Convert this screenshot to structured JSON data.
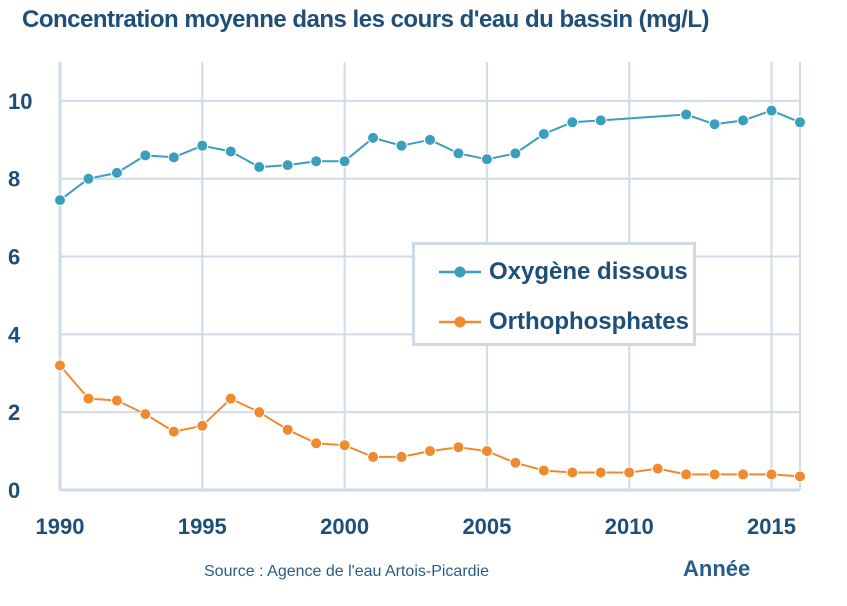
{
  "chart_data": {
    "type": "line",
    "title": "Concentration moyenne dans les cours d'eau du bassin (mg/L)",
    "xlabel": "Année",
    "ylabel": "",
    "source": "Source : Agence de l'eau Artois-Picardie",
    "xlim": [
      1990,
      2016
    ],
    "ylim": [
      0,
      11
    ],
    "yticks": [
      0,
      2,
      4,
      6,
      8,
      10
    ],
    "xticks": [
      1990,
      1995,
      2000,
      2005,
      2010,
      2015
    ],
    "grid": true,
    "legend_position": "center-right",
    "series": [
      {
        "name": "Oxygène dissous",
        "color": "#3a9fbd",
        "x": [
          1990,
          1991,
          1992,
          1993,
          1994,
          1995,
          1996,
          1997,
          1998,
          1999,
          2000,
          2001,
          2002,
          2003,
          2004,
          2005,
          2006,
          2007,
          2008,
          2009,
          2012,
          2013,
          2014,
          2015,
          2016
        ],
        "y": [
          7.45,
          8.0,
          8.15,
          8.6,
          8.55,
          8.85,
          8.7,
          8.3,
          8.35,
          8.45,
          8.45,
          9.05,
          8.85,
          9.0,
          8.65,
          8.5,
          8.65,
          9.15,
          9.45,
          9.5,
          9.65,
          9.4,
          9.5,
          9.75,
          9.45
        ]
      },
      {
        "name": "Orthophosphates",
        "color": "#f08a2e",
        "x": [
          1990,
          1991,
          1992,
          1993,
          1994,
          1995,
          1996,
          1997,
          1998,
          1999,
          2000,
          2001,
          2002,
          2003,
          2004,
          2005,
          2006,
          2007,
          2008,
          2009,
          2010,
          2011,
          2012,
          2013,
          2014,
          2015,
          2016
        ],
        "y": [
          3.2,
          2.35,
          2.3,
          1.95,
          1.5,
          1.65,
          2.35,
          2.0,
          1.55,
          1.2,
          1.15,
          0.85,
          0.85,
          1.0,
          1.1,
          1.0,
          0.7,
          0.5,
          0.45,
          0.45,
          0.45,
          0.55,
          0.4,
          0.4,
          0.4,
          0.4,
          0.35
        ]
      }
    ]
  }
}
